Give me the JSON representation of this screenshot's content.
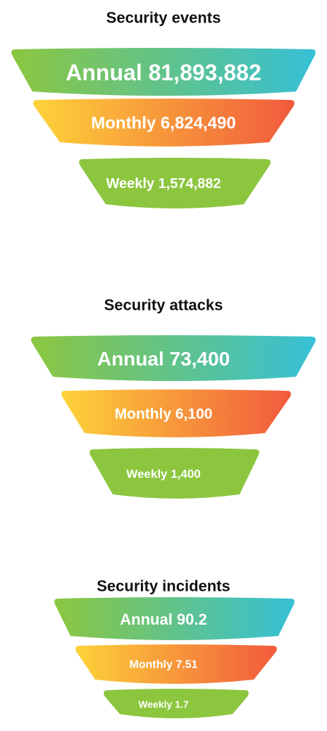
{
  "funnels": [
    {
      "title": "Security events",
      "levels": [
        "Annual 81,893,882",
        "Monthly 6,824,490",
        "Weekly 1,574,882"
      ]
    },
    {
      "title": "Security attacks",
      "levels": [
        "Annual 73,400",
        "Monthly 6,100",
        "Weekly 1,400"
      ]
    },
    {
      "title": "Security incidents",
      "levels": [
        "Annual 90.2",
        "Monthly 7.51",
        "Weekly 1.7"
      ]
    }
  ]
}
